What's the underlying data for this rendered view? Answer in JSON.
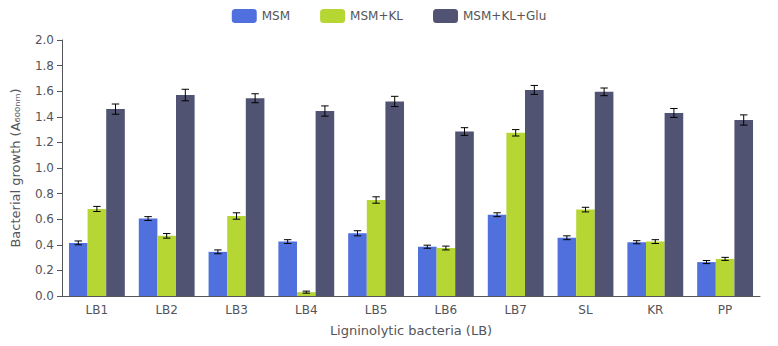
{
  "chart_data": {
    "type": "bar",
    "xlabel": "Ligninolytic bacteria (LB)",
    "ylabel": "Bacterial growth (A₆₀₀ₙₘ)",
    "categories": [
      "LB1",
      "LB2",
      "LB3",
      "LB4",
      "LB5",
      "LB6",
      "LB7",
      "SL",
      "KR",
      "PP"
    ],
    "series": [
      {
        "name": "MSM",
        "values": [
          0.415,
          0.605,
          0.345,
          0.425,
          0.49,
          0.385,
          0.635,
          0.455,
          0.42,
          0.265
        ],
        "errors": [
          0.015,
          0.015,
          0.015,
          0.015,
          0.02,
          0.012,
          0.015,
          0.015,
          0.012,
          0.012
        ]
      },
      {
        "name": "MSM+KL",
        "values": [
          0.68,
          0.47,
          0.625,
          0.03,
          0.75,
          0.375,
          1.275,
          0.675,
          0.425,
          0.29
        ],
        "errors": [
          0.02,
          0.018,
          0.025,
          0.008,
          0.025,
          0.015,
          0.025,
          0.018,
          0.015,
          0.012
        ]
      },
      {
        "name": "MSM+KL+Glu",
        "values": [
          1.46,
          1.57,
          1.545,
          1.445,
          1.52,
          1.285,
          1.61,
          1.595,
          1.43,
          1.375
        ],
        "errors": [
          0.04,
          0.045,
          0.035,
          0.04,
          0.04,
          0.03,
          0.035,
          0.03,
          0.035,
          0.04
        ]
      }
    ],
    "ylim": [
      0.0,
      2.0
    ],
    "yticks": [
      {
        "value": 0.0,
        "label": "0.0"
      },
      0.2,
      0.4,
      0.6,
      0.8,
      {
        "value": 1.0,
        "label": "1.0"
      },
      1.2,
      1.4,
      1.6,
      1.8,
      {
        "value": 2.0,
        "label": "2.0"
      }
    ],
    "grid": false,
    "legend": "top"
  }
}
